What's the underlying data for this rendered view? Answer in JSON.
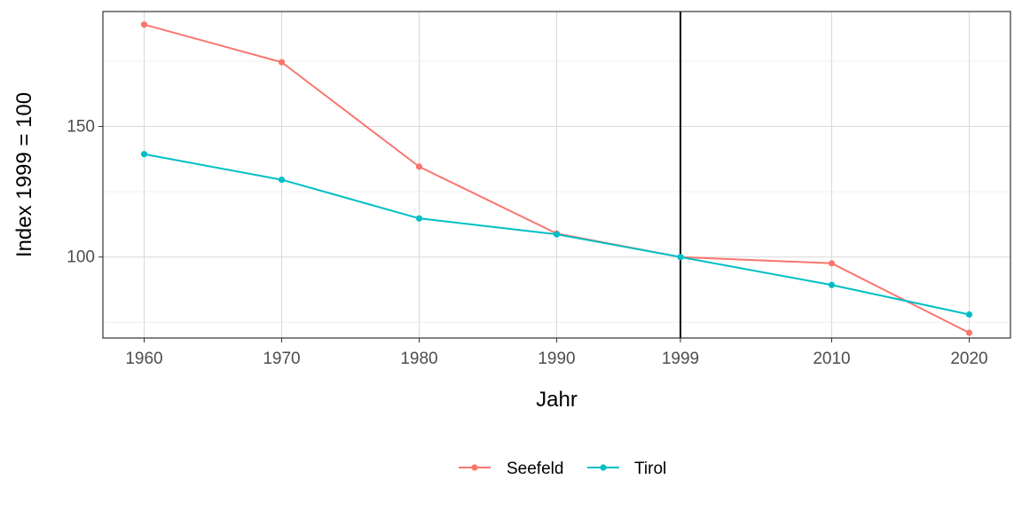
{
  "chart_data": {
    "type": "line",
    "x": [
      1960,
      1970,
      1980,
      1990,
      1999,
      2010,
      2020
    ],
    "x_tick_labels": [
      "1960",
      "1970",
      "1980",
      "1990",
      "1999",
      "2010",
      "2020"
    ],
    "xlim": [
      1957,
      2023
    ],
    "ylim": [
      69,
      194
    ],
    "y_major_ticks": [
      100,
      150
    ],
    "y_major_tick_labels": [
      "100",
      "150"
    ],
    "y_minor_gridlines": [
      75,
      125,
      175
    ],
    "xlabel": "Jahr",
    "ylabel": "Index 1999 = 100",
    "grid": true,
    "reference_line": {
      "x": 1999,
      "color": "#000000"
    },
    "legend": {
      "position": "bottom"
    },
    "series": [
      {
        "name": "Seefeld",
        "color": "#F8766D",
        "values": [
          189,
          174.6,
          134.6,
          109,
          100,
          97.6,
          71
        ]
      },
      {
        "name": "Tirol",
        "color": "#00BFC4",
        "values": [
          139.4,
          129.6,
          114.8,
          108.7,
          100,
          89.3,
          78
        ]
      }
    ]
  }
}
